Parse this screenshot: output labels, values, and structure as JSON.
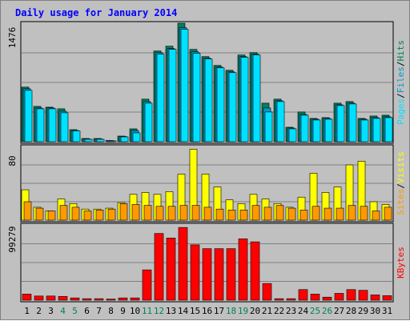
{
  "title": "Daily usage for January 2014",
  "colors": {
    "pages": "#00e1ff",
    "files": "#0099cc",
    "hits": "#00805c",
    "sites": "#ff9900",
    "visits": "#ffff00",
    "kbytes": "#ff0000",
    "slash": "#000000",
    "weekend": "#00805c",
    "weekday": "#000000",
    "panel": "#c0c0c0",
    "grid": "#808080"
  },
  "chart_data": {
    "type": "bar",
    "categories": [
      "1",
      "2",
      "3",
      "4",
      "5",
      "6",
      "7",
      "8",
      "9",
      "10",
      "11",
      "12",
      "13",
      "14",
      "15",
      "16",
      "17",
      "18",
      "19",
      "20",
      "21",
      "22",
      "23",
      "24",
      "25",
      "26",
      "27",
      "28",
      "29",
      "30",
      "31"
    ],
    "weekend_days": [
      "4",
      "5",
      "11",
      "12",
      "18",
      "19",
      "25",
      "26"
    ],
    "panels": [
      {
        "id": "hits-files-pages",
        "ymax_label": "1476",
        "ylim": [
          0,
          1476
        ],
        "legend": [
          "Pages",
          "/",
          "Files",
          "/",
          "Hits"
        ],
        "series": [
          {
            "name": "Hits",
            "color_key": "hits",
            "values": [
              680,
              440,
              430,
              410,
              150,
              40,
              40,
              15,
              70,
              160,
              530,
              1130,
              1190,
              1476,
              1150,
              1060,
              950,
              890,
              1080,
              1110,
              480,
              530,
              180,
              370,
              290,
              300,
              480,
              500,
              290,
              320,
              330
            ]
          },
          {
            "name": "Files",
            "color_key": "files",
            "values": [
              660,
              420,
              420,
              380,
              140,
              35,
              35,
              12,
              65,
              140,
              500,
              1110,
              1160,
              1420,
              1120,
              1040,
              930,
              870,
              1060,
              1090,
              420,
              510,
              170,
              340,
              280,
              290,
              460,
              480,
              280,
              300,
              310
            ]
          },
          {
            "name": "Pages",
            "color_key": "pages",
            "values": [
              640,
              410,
              410,
              360,
              135,
              30,
              30,
              10,
              60,
              110,
              480,
              1090,
              1150,
              1400,
              1100,
              1030,
              920,
              860,
              1050,
              1080,
              370,
              500,
              160,
              330,
              270,
              280,
              450,
              470,
              270,
              290,
              300
            ]
          }
        ]
      },
      {
        "id": "visits-sites",
        "ymax_label": "80",
        "ylim": [
          0,
          80
        ],
        "legend": [
          "Sites",
          "/",
          "Visits"
        ],
        "series": [
          {
            "name": "Visits",
            "color_key": "visits",
            "values": [
              33,
              14,
              10,
              23,
              18,
              12,
              12,
              13,
              19,
              28,
              30,
              28,
              31,
              50,
              77,
              50,
              36,
              22,
              18,
              28,
              23,
              18,
              14,
              25,
              51,
              30,
              36,
              60,
              64,
              20,
              17
            ]
          },
          {
            "name": "Sites",
            "color_key": "sites",
            "values": [
              20,
              13,
              10,
              16,
              14,
              10,
              11,
              12,
              18,
              17,
              16,
              15,
              15,
              16,
              16,
              14,
              12,
              11,
              11,
              16,
              14,
              16,
              13,
              11,
              15,
              13,
              13,
              16,
              15,
              10,
              14
            ]
          }
        ]
      },
      {
        "id": "kbytes",
        "ymax_label": "99279",
        "ylim": [
          0,
          99279
        ],
        "legend": [
          "KBytes"
        ],
        "series": [
          {
            "name": "KBytes",
            "color_key": "kbytes",
            "values": [
              8000,
              5500,
              5500,
              5000,
              3000,
              2000,
              2000,
              1500,
              3000,
              3000,
              40000,
              88000,
              82000,
              96000,
              73000,
              68000,
              68000,
              68000,
              81000,
              77000,
              22000,
              2000,
              2000,
              14000,
              8000,
              4000,
              9000,
              14000,
              13000,
              7000,
              6000
            ]
          }
        ]
      }
    ]
  }
}
